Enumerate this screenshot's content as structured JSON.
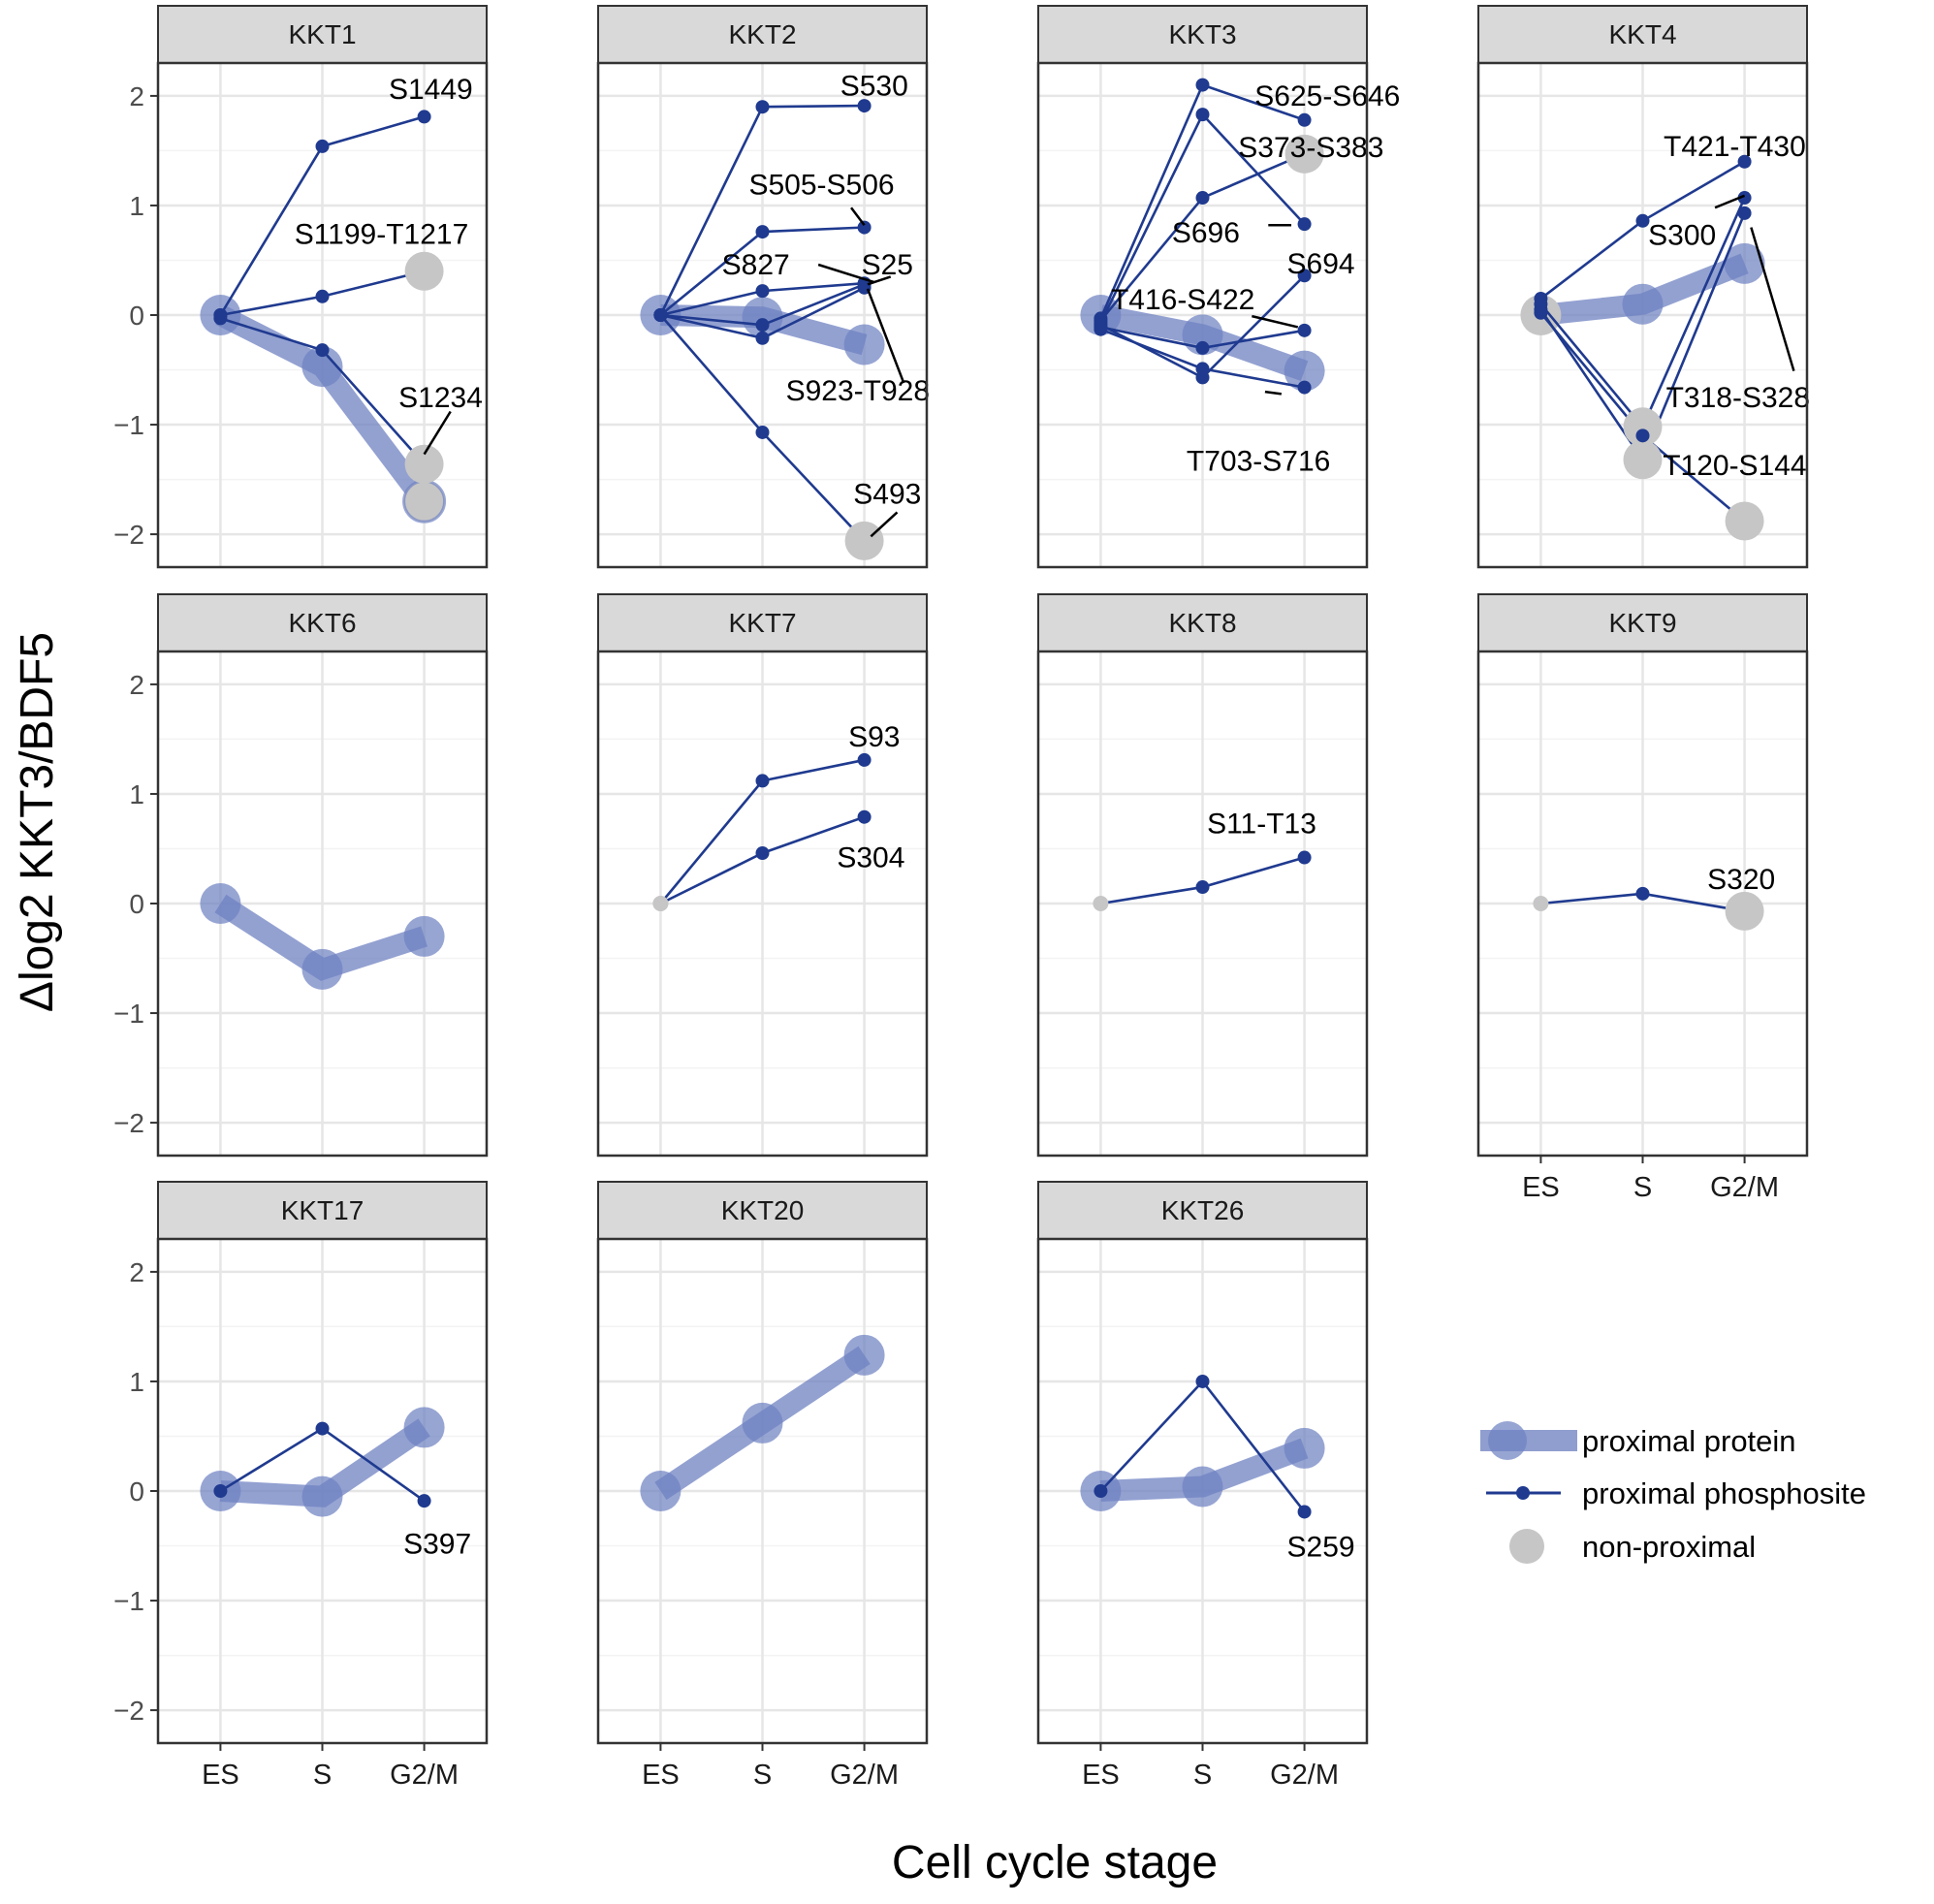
{
  "colors": {
    "phosphosite": "#1f3a8f",
    "protein": "#6f82c2",
    "non_proximal": "#c6c6c6",
    "strip_fill": "#d9d9d9",
    "grid_major": "#e6e6e6",
    "grid_minor": "#f3f3f3",
    "panel_border": "#333333",
    "tick_text": "#4d4d4d",
    "annotation_line": "#000000"
  },
  "chart_data": {
    "type": "line",
    "layout": "faceted grid, 3 rows x 4 columns",
    "title": "",
    "xlabel": "Cell cycle stage",
    "ylabel": "Δlog2 KKT3/BDF5",
    "categories": [
      "ES",
      "S",
      "G2/M"
    ],
    "ylim": [
      -2.3,
      2.3
    ],
    "yticks": [
      -2,
      -1,
      0,
      1,
      2
    ],
    "ytick_labels": [
      "−2",
      "−1",
      "0",
      "1",
      "2"
    ],
    "grid": true,
    "legend": {
      "placement": "right",
      "entries": [
        {
          "kind": "protein",
          "label": "proximal protein"
        },
        {
          "kind": "phosphosite",
          "label": "proximal phosphosite"
        },
        {
          "kind": "non_proximal",
          "label": "non-proximal"
        }
      ]
    },
    "panels": [
      {
        "name": "KKT1",
        "protein": {
          "values": [
            0,
            -0.47,
            -1.7
          ],
          "non_proximal": [
            false,
            false,
            true
          ]
        },
        "sites": [
          {
            "label": "S1449",
            "values": [
              0,
              1.54,
              1.81
            ],
            "non_proximal": [
              false,
              false,
              false
            ]
          },
          {
            "label": "S1199-T1217",
            "values": [
              0,
              0.17,
              0.4
            ],
            "non_proximal": [
              false,
              false,
              true
            ]
          },
          {
            "label": "S1234",
            "values": [
              -0.03,
              -0.32,
              -1.36
            ],
            "non_proximal": [
              false,
              false,
              true
            ]
          }
        ]
      },
      {
        "name": "KKT2",
        "protein": {
          "values": [
            0,
            -0.02,
            -0.27
          ],
          "non_proximal": [
            false,
            false,
            false
          ]
        },
        "sites": [
          {
            "label": "S530",
            "values": [
              0,
              1.9,
              1.91
            ],
            "non_proximal": [
              false,
              false,
              false
            ]
          },
          {
            "label": "S505-S506",
            "values": [
              0,
              0.76,
              0.8
            ],
            "non_proximal": [
              false,
              false,
              false
            ]
          },
          {
            "label": "S827",
            "values": [
              0,
              0.22,
              0.29
            ],
            "non_proximal": [
              false,
              false,
              false
            ]
          },
          {
            "label": "S25",
            "values": [
              0,
              -0.09,
              0.28
            ],
            "non_proximal": [
              false,
              false,
              false
            ]
          },
          {
            "label": "S923-T928",
            "values": [
              0,
              -0.21,
              0.25
            ],
            "non_proximal": [
              false,
              false,
              false
            ]
          },
          {
            "label": "S493",
            "values": [
              0,
              -1.07,
              -2.06
            ],
            "non_proximal": [
              false,
              false,
              true
            ]
          }
        ]
      },
      {
        "name": "KKT3",
        "protein": {
          "values": [
            0,
            -0.18,
            -0.51
          ],
          "non_proximal": [
            false,
            false,
            false
          ]
        },
        "sites": [
          {
            "label": "S625-S646",
            "values": [
              -0.03,
              2.1,
              1.78
            ],
            "non_proximal": [
              false,
              false,
              false
            ]
          },
          {
            "label": "S373-S383",
            "values": [
              -0.05,
              1.07,
              1.47
            ],
            "non_proximal": [
              false,
              false,
              true
            ]
          },
          {
            "label": "S696",
            "values": [
              -0.07,
              1.83,
              0.83
            ],
            "non_proximal": [
              false,
              false,
              false
            ]
          },
          {
            "label": "S694",
            "values": [
              -0.09,
              -0.57,
              0.36
            ],
            "non_proximal": [
              false,
              false,
              false
            ]
          },
          {
            "label": "T416-S422",
            "values": [
              -0.11,
              -0.3,
              -0.14
            ],
            "non_proximal": [
              false,
              false,
              false
            ]
          },
          {
            "label": "T703-S716",
            "values": [
              -0.13,
              -0.49,
              -0.66
            ],
            "non_proximal": [
              false,
              false,
              false
            ]
          }
        ]
      },
      {
        "name": "KKT4",
        "protein": {
          "values": [
            0,
            0.1,
            0.47
          ],
          "non_proximal": [
            true,
            false,
            false
          ]
        },
        "sites": [
          {
            "label": "T421-T430",
            "values": [
              0.15,
              0.86,
              1.4
            ],
            "non_proximal": [
              false,
              false,
              false
            ]
          },
          {
            "label": "S300",
            "values": [
              0.1,
              -1.02,
              1.07
            ],
            "non_proximal": [
              false,
              true,
              false
            ]
          },
          {
            "label": "T318-S328",
            "values": [
              0.05,
              -1.32,
              0.93
            ],
            "non_proximal": [
              false,
              true,
              false
            ]
          },
          {
            "label": "T120-S144",
            "values": [
              0.02,
              -1.1,
              -1.88
            ],
            "non_proximal": [
              false,
              false,
              true
            ]
          }
        ]
      },
      {
        "name": "KKT6",
        "protein": {
          "values": [
            0,
            -0.6,
            -0.3
          ],
          "non_proximal": [
            false,
            false,
            false
          ]
        },
        "sites": []
      },
      {
        "name": "KKT7",
        "protein": null,
        "sites": [
          {
            "label": "S93",
            "values": [
              0,
              1.12,
              1.31
            ],
            "non_proximal": [
              true,
              false,
              false
            ]
          },
          {
            "label": "S304",
            "values": [
              0,
              0.46,
              0.79
            ],
            "non_proximal": [
              true,
              false,
              false
            ]
          }
        ]
      },
      {
        "name": "KKT8",
        "protein": null,
        "sites": [
          {
            "label": "S11-T13",
            "values": [
              0,
              0.15,
              0.42
            ],
            "non_proximal": [
              true,
              false,
              false
            ]
          }
        ]
      },
      {
        "name": "KKT9",
        "protein": null,
        "sites": [
          {
            "label": "S320",
            "values": [
              0,
              0.09,
              -0.07
            ],
            "non_proximal": [
              true,
              false,
              true
            ]
          }
        ]
      },
      {
        "name": "KKT17",
        "protein": {
          "values": [
            0,
            -0.05,
            0.58
          ],
          "non_proximal": [
            false,
            false,
            false
          ]
        },
        "sites": [
          {
            "label": "S397",
            "values": [
              0,
              0.57,
              -0.09
            ],
            "non_proximal": [
              false,
              false,
              false
            ]
          }
        ]
      },
      {
        "name": "KKT20",
        "protein": {
          "values": [
            0,
            0.62,
            1.24
          ],
          "non_proximal": [
            false,
            false,
            false
          ]
        },
        "sites": []
      },
      {
        "name": "KKT26",
        "protein": {
          "values": [
            0,
            0.04,
            0.39
          ],
          "non_proximal": [
            false,
            false,
            false
          ]
        },
        "sites": [
          {
            "label": "S259",
            "values": [
              0,
              1.0,
              -0.19
            ],
            "non_proximal": [
              false,
              false,
              false
            ]
          }
        ]
      }
    ]
  }
}
